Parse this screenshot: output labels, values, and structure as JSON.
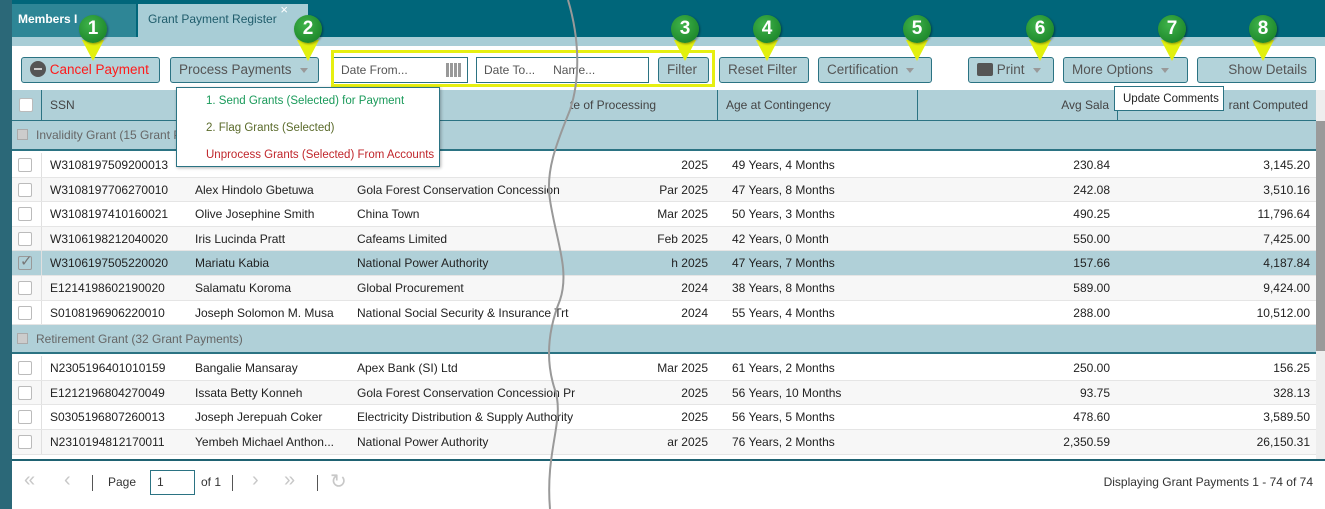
{
  "tabs": [
    {
      "label": "Members I"
    },
    {
      "label": "Grant Payment Register",
      "close": "×"
    }
  ],
  "toolbar": {
    "cancel_payment": "Cancel Payment",
    "process_payments": "Process Payments",
    "date_from": "Date From...",
    "date_to": "Date To...",
    "name_placeholder": "Name...",
    "filter": "Filter",
    "reset_filter": "Reset Filter",
    "certification": "Certification",
    "print": "Print",
    "more_options": "More Options",
    "show_details": "Show Details"
  },
  "process_menu": [
    "1. Send Grants (Selected) for Payment",
    "2. Flag Grants (Selected)",
    "Unprocess Grants (Selected) From Accounts"
  ],
  "process_menu_colors": [
    "#1a9a5a",
    "#5a6a2a",
    "#c0262b"
  ],
  "more_options_menu": [
    "Update Comments"
  ],
  "columns": {
    "ssn": "SSN",
    "date": "te of Processing",
    "age": "Age at Contingency",
    "avg_salary": "Avg Sala",
    "grant": "rant Computed"
  },
  "groups": [
    {
      "label": "Invalidity Grant (15 Grant P",
      "rows": [
        {
          "ssn": "W3108197509200013",
          "name": "",
          "employer": "",
          "date": "2025",
          "age": "49 Years, 4 Months",
          "avg": "230.84",
          "grant": "3,145.20",
          "checked": false
        },
        {
          "ssn": "W3108197706270010",
          "name": "Alex Hindolo Gbetuwa",
          "employer": "Gola Forest Conservation Concession",
          "date": "Par 2025",
          "age": "47 Years, 8 Months",
          "avg": "242.08",
          "grant": "3,510.16",
          "checked": false
        },
        {
          "ssn": "W3108197410160021",
          "name": "Olive Josephine Smith",
          "employer": "China Town",
          "date": "Mar 2025",
          "age": "50 Years, 3 Months",
          "avg": "490.25",
          "grant": "11,796.64",
          "checked": false
        },
        {
          "ssn": "W3106198212040020",
          "name": "Iris Lucinda Pratt",
          "employer": "Cafeams Limited",
          "date": "Feb 2025",
          "age": "42 Years, 0 Month",
          "avg": "550.00",
          "grant": "7,425.00",
          "checked": false
        },
        {
          "ssn": "W3106197505220020",
          "name": "Mariatu Kabia",
          "employer": "National Power Authority",
          "date": "h 2025",
          "age": "47 Years, 7 Months",
          "avg": "157.66",
          "grant": "4,187.84",
          "checked": true
        },
        {
          "ssn": "E1214198602190020",
          "name": "Salamatu Koroma",
          "employer": "Global Procurement",
          "date": "2024",
          "age": "38 Years, 8 Months",
          "avg": "589.00",
          "grant": "9,424.00",
          "checked": false
        },
        {
          "ssn": "S0108196906220010",
          "name": "Joseph Solomon M. Musa",
          "employer": "National Social Security & Insurance Trt",
          "date": "2024",
          "age": "55 Years, 4 Months",
          "avg": "288.00",
          "grant": "10,512.00",
          "checked": false
        }
      ]
    },
    {
      "label": "Retirement Grant (32 Grant Payments)",
      "rows": [
        {
          "ssn": "N2305196401010159",
          "name": "Bangalie Mansaray",
          "employer": "Apex Bank (SI) Ltd",
          "date": "Mar 2025",
          "age": "61 Years, 2 Months",
          "avg": "250.00",
          "grant": "156.25",
          "checked": false
        },
        {
          "ssn": "E1212196804270049",
          "name": "Issata Betty Konneh",
          "employer": "Gola Forest Conservation Concession Pr",
          "date": "2025",
          "age": "56 Years, 10 Months",
          "avg": "93.75",
          "grant": "328.13",
          "checked": false
        },
        {
          "ssn": "S0305196807260013",
          "name": "Joseph Jerepuah Coker",
          "employer": "Electricity Distribution & Supply Authority",
          "date": "2025",
          "age": "56 Years, 5 Months",
          "avg": "478.60",
          "grant": "3,589.50",
          "checked": false
        },
        {
          "ssn": "N2310194812170011",
          "name": "Yembeh Michael Anthon...",
          "employer": "National Power Authority",
          "date": "ar 2025",
          "age": "76 Years, 2 Months",
          "avg": "2,350.59",
          "grant": "26,150.31",
          "checked": false
        }
      ]
    }
  ],
  "paging": {
    "page_label": "Page",
    "page": "1",
    "of": "of 1",
    "display": "Displaying Grant Payments 1 - 74 of 74"
  },
  "annotations": [
    "1",
    "2",
    "3",
    "4",
    "5",
    "6",
    "7",
    "8"
  ],
  "colors": {
    "teal": "#00667a",
    "header": "#b0d0d8",
    "badge": "#1f9a30",
    "arrow": "#e2f00e",
    "cancel": "#ff1a1a"
  }
}
